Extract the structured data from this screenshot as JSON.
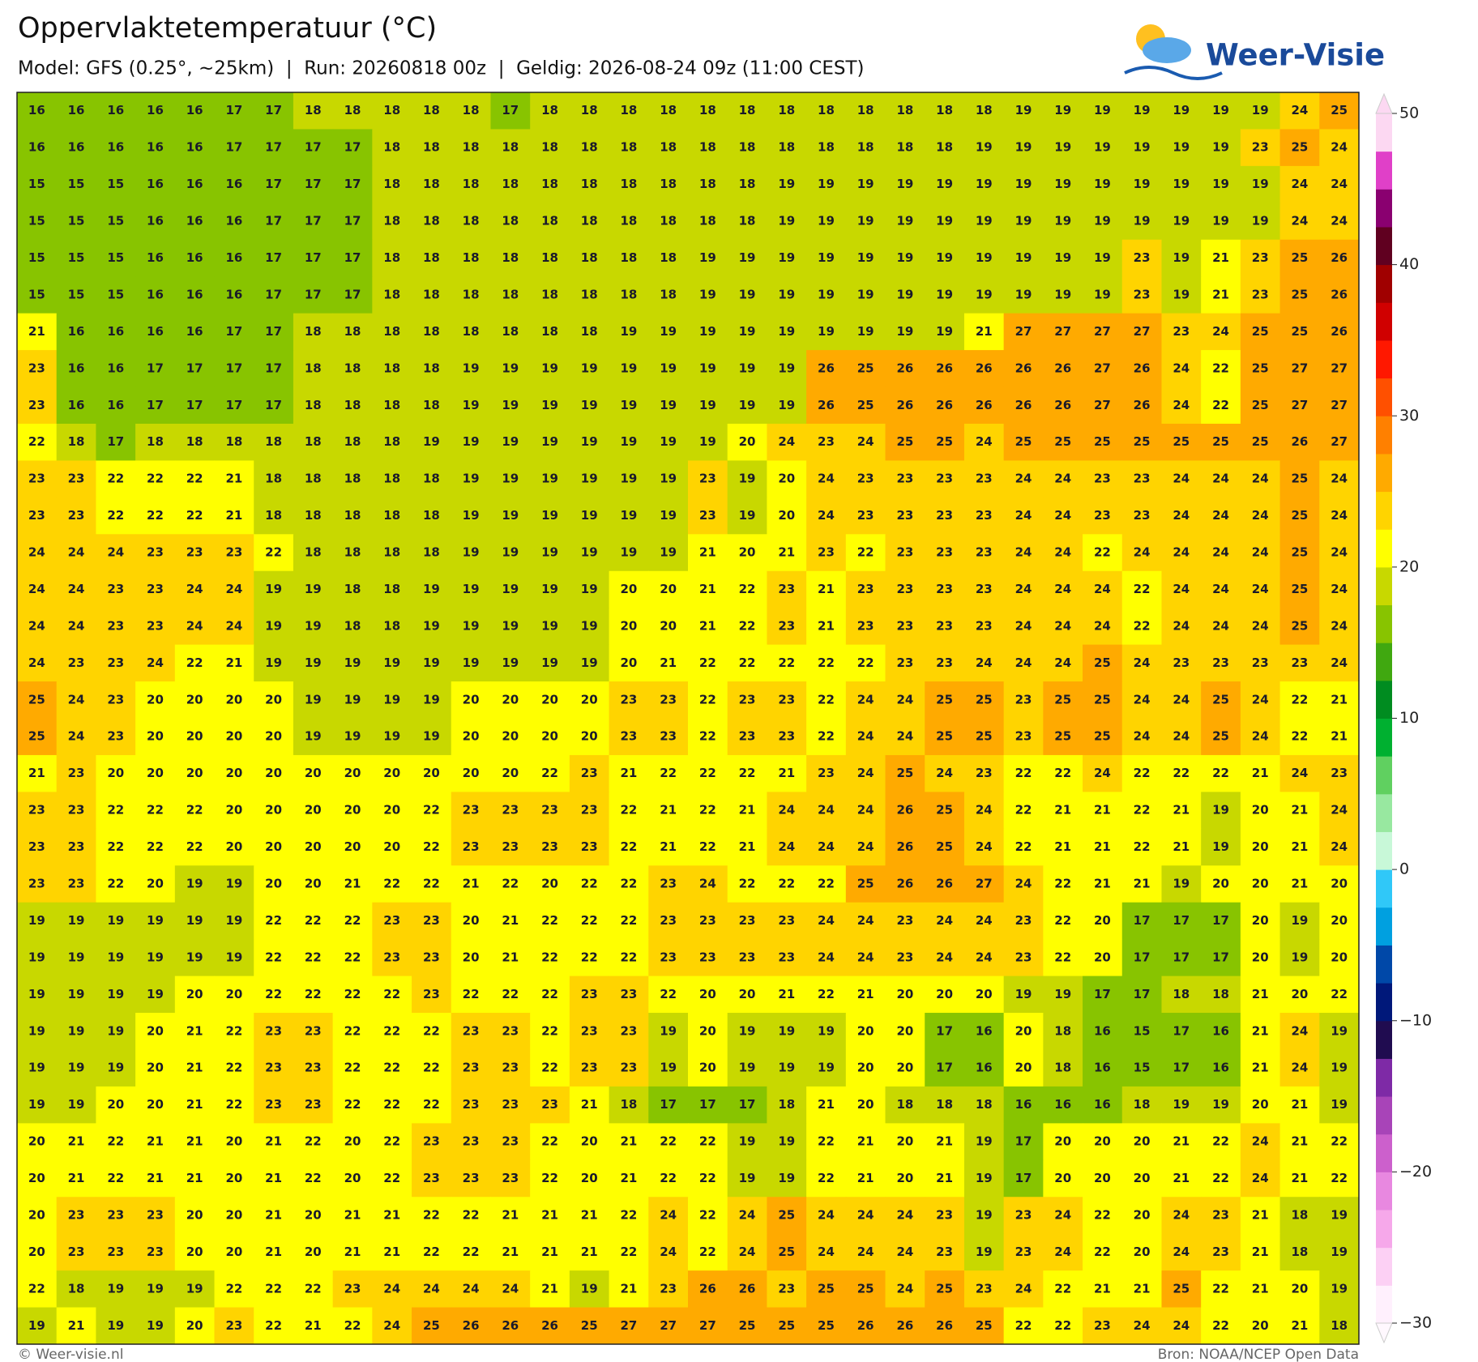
{
  "header": {
    "title": "Oppervlaktetemperatuur (°C)",
    "subtitle": "Model: GFS (0.25°, ~25km)  |  Run: 20260818 00z  |  Geldig: 2026-08-24 09z (11:00 CEST)"
  },
  "logo": {
    "text": "Weer-Visie"
  },
  "map": {
    "values": [
      [
        16,
        16,
        16,
        16,
        16,
        17,
        17,
        18,
        18,
        18,
        18,
        18,
        17,
        18,
        18,
        18,
        18,
        18,
        18,
        18,
        18,
        18,
        18,
        18,
        18,
        19,
        19,
        19,
        19,
        19,
        19,
        19,
        24,
        25
      ],
      [
        16,
        16,
        16,
        16,
        16,
        17,
        17,
        17,
        17,
        18,
        18,
        18,
        18,
        18,
        18,
        18,
        18,
        18,
        18,
        18,
        18,
        18,
        18,
        18,
        19,
        19,
        19,
        19,
        19,
        19,
        19,
        23,
        25,
        24
      ],
      [
        15,
        15,
        15,
        16,
        16,
        16,
        17,
        17,
        17,
        18,
        18,
        18,
        18,
        18,
        18,
        18,
        18,
        18,
        18,
        19,
        19,
        19,
        19,
        19,
        19,
        19,
        19,
        19,
        19,
        19,
        19,
        19,
        24,
        24
      ],
      [
        15,
        15,
        15,
        16,
        16,
        16,
        17,
        17,
        17,
        18,
        18,
        18,
        18,
        18,
        18,
        18,
        18,
        18,
        18,
        19,
        19,
        19,
        19,
        19,
        19,
        19,
        19,
        19,
        19,
        19,
        19,
        19,
        24,
        24
      ],
      [
        15,
        15,
        15,
        16,
        16,
        16,
        17,
        17,
        17,
        18,
        18,
        18,
        18,
        18,
        18,
        18,
        18,
        19,
        19,
        19,
        19,
        19,
        19,
        19,
        19,
        19,
        19,
        19,
        23,
        19,
        21,
        23,
        25,
        26
      ],
      [
        15,
        15,
        15,
        16,
        16,
        16,
        17,
        17,
        17,
        18,
        18,
        18,
        18,
        18,
        18,
        18,
        18,
        19,
        19,
        19,
        19,
        19,
        19,
        19,
        19,
        19,
        19,
        19,
        23,
        19,
        21,
        23,
        25,
        26
      ],
      [
        21,
        16,
        16,
        16,
        16,
        17,
        17,
        18,
        18,
        18,
        18,
        18,
        18,
        18,
        18,
        19,
        19,
        19,
        19,
        19,
        19,
        19,
        19,
        19,
        21,
        27,
        27,
        27,
        27,
        23,
        24,
        25,
        25,
        26
      ],
      [
        23,
        16,
        16,
        17,
        17,
        17,
        17,
        18,
        18,
        18,
        18,
        19,
        19,
        19,
        19,
        19,
        19,
        19,
        19,
        19,
        26,
        25,
        26,
        26,
        26,
        26,
        26,
        27,
        26,
        24,
        22,
        25,
        27,
        27
      ],
      [
        23,
        16,
        16,
        17,
        17,
        17,
        17,
        18,
        18,
        18,
        18,
        19,
        19,
        19,
        19,
        19,
        19,
        19,
        19,
        19,
        26,
        25,
        26,
        26,
        26,
        26,
        26,
        27,
        26,
        24,
        22,
        25,
        27,
        27
      ],
      [
        22,
        18,
        17,
        18,
        18,
        18,
        18,
        18,
        18,
        18,
        19,
        19,
        19,
        19,
        19,
        19,
        19,
        19,
        20,
        24,
        23,
        24,
        25,
        25,
        24,
        25,
        25,
        25,
        25,
        25,
        25,
        25,
        26,
        27
      ],
      [
        23,
        23,
        22,
        22,
        22,
        21,
        18,
        18,
        18,
        18,
        18,
        19,
        19,
        19,
        19,
        19,
        19,
        23,
        19,
        20,
        24,
        23,
        23,
        23,
        23,
        24,
        24,
        23,
        23,
        24,
        24,
        24,
        25,
        24
      ],
      [
        23,
        23,
        22,
        22,
        22,
        21,
        18,
        18,
        18,
        18,
        18,
        19,
        19,
        19,
        19,
        19,
        19,
        23,
        19,
        20,
        24,
        23,
        23,
        23,
        23,
        24,
        24,
        23,
        23,
        24,
        24,
        24,
        25,
        24
      ],
      [
        24,
        24,
        24,
        23,
        23,
        23,
        22,
        18,
        18,
        18,
        18,
        19,
        19,
        19,
        19,
        19,
        19,
        21,
        20,
        21,
        23,
        22,
        23,
        23,
        23,
        24,
        24,
        22,
        24,
        24,
        24,
        24,
        25,
        24
      ],
      [
        24,
        24,
        23,
        23,
        24,
        24,
        19,
        19,
        18,
        18,
        19,
        19,
        19,
        19,
        19,
        20,
        20,
        21,
        22,
        23,
        21,
        23,
        23,
        23,
        23,
        24,
        24,
        24,
        22,
        24,
        24,
        24,
        25,
        24
      ],
      [
        24,
        24,
        23,
        23,
        24,
        24,
        19,
        19,
        18,
        18,
        19,
        19,
        19,
        19,
        19,
        20,
        20,
        21,
        22,
        23,
        21,
        23,
        23,
        23,
        23,
        24,
        24,
        24,
        22,
        24,
        24,
        24,
        25,
        24
      ],
      [
        24,
        23,
        23,
        24,
        22,
        21,
        19,
        19,
        19,
        19,
        19,
        19,
        19,
        19,
        19,
        20,
        21,
        22,
        22,
        22,
        22,
        22,
        23,
        23,
        24,
        24,
        24,
        25,
        24,
        23,
        23,
        23,
        23,
        24
      ],
      [
        25,
        24,
        23,
        20,
        20,
        20,
        20,
        19,
        19,
        19,
        19,
        20,
        20,
        20,
        20,
        23,
        23,
        22,
        23,
        23,
        22,
        24,
        24,
        25,
        25,
        23,
        25,
        25,
        24,
        24,
        25,
        24,
        22,
        21
      ],
      [
        25,
        24,
        23,
        20,
        20,
        20,
        20,
        19,
        19,
        19,
        19,
        20,
        20,
        20,
        20,
        23,
        23,
        22,
        23,
        23,
        22,
        24,
        24,
        25,
        25,
        23,
        25,
        25,
        24,
        24,
        25,
        24,
        22,
        21
      ],
      [
        21,
        23,
        20,
        20,
        20,
        20,
        20,
        20,
        20,
        20,
        20,
        20,
        20,
        22,
        23,
        21,
        22,
        22,
        22,
        21,
        23,
        24,
        25,
        24,
        23,
        22,
        22,
        24,
        22,
        22,
        22,
        21,
        24,
        23
      ],
      [
        23,
        23,
        22,
        22,
        22,
        20,
        20,
        20,
        20,
        20,
        22,
        23,
        23,
        23,
        23,
        22,
        21,
        22,
        21,
        24,
        24,
        24,
        26,
        25,
        24,
        22,
        21,
        21,
        22,
        21,
        19,
        20,
        21,
        24
      ],
      [
        23,
        23,
        22,
        22,
        22,
        20,
        20,
        20,
        20,
        20,
        22,
        23,
        23,
        23,
        23,
        22,
        21,
        22,
        21,
        24,
        24,
        24,
        26,
        25,
        24,
        22,
        21,
        21,
        22,
        21,
        19,
        20,
        21,
        24
      ],
      [
        23,
        23,
        22,
        20,
        19,
        19,
        20,
        20,
        21,
        22,
        22,
        21,
        22,
        20,
        22,
        22,
        23,
        24,
        22,
        22,
        22,
        25,
        26,
        26,
        27,
        24,
        22,
        21,
        21,
        19,
        20,
        20,
        21,
        20
      ],
      [
        19,
        19,
        19,
        19,
        19,
        19,
        22,
        22,
        22,
        23,
        23,
        20,
        21,
        22,
        22,
        22,
        23,
        23,
        23,
        23,
        24,
        24,
        23,
        24,
        24,
        23,
        22,
        20,
        17,
        17,
        17,
        20,
        19,
        20
      ],
      [
        19,
        19,
        19,
        19,
        19,
        19,
        22,
        22,
        22,
        23,
        23,
        20,
        21,
        22,
        22,
        22,
        23,
        23,
        23,
        23,
        24,
        24,
        23,
        24,
        24,
        23,
        22,
        20,
        17,
        17,
        17,
        20,
        19,
        20
      ],
      [
        19,
        19,
        19,
        19,
        20,
        20,
        22,
        22,
        22,
        22,
        23,
        22,
        22,
        22,
        23,
        23,
        22,
        20,
        20,
        21,
        22,
        21,
        20,
        20,
        20,
        19,
        19,
        17,
        17,
        18,
        18,
        21,
        20,
        22
      ],
      [
        19,
        19,
        19,
        20,
        21,
        22,
        23,
        23,
        22,
        22,
        22,
        23,
        23,
        22,
        23,
        23,
        19,
        20,
        19,
        19,
        19,
        20,
        20,
        17,
        16,
        20,
        18,
        16,
        15,
        17,
        16,
        21,
        24,
        19
      ],
      [
        19,
        19,
        19,
        20,
        21,
        22,
        23,
        23,
        22,
        22,
        22,
        23,
        23,
        22,
        23,
        23,
        19,
        20,
        19,
        19,
        19,
        20,
        20,
        17,
        16,
        20,
        18,
        16,
        15,
        17,
        16,
        21,
        24,
        19
      ],
      [
        19,
        19,
        20,
        20,
        21,
        22,
        23,
        23,
        22,
        22,
        22,
        23,
        23,
        23,
        21,
        18,
        17,
        17,
        17,
        18,
        21,
        20,
        18,
        18,
        18,
        16,
        16,
        16,
        18,
        19,
        19,
        20,
        21,
        19
      ],
      [
        20,
        21,
        22,
        21,
        21,
        20,
        21,
        22,
        20,
        22,
        23,
        23,
        23,
        22,
        20,
        21,
        22,
        22,
        19,
        19,
        22,
        21,
        20,
        21,
        19,
        17,
        20,
        20,
        20,
        21,
        22,
        24,
        21,
        22
      ],
      [
        20,
        21,
        22,
        21,
        21,
        20,
        21,
        22,
        20,
        22,
        23,
        23,
        23,
        22,
        20,
        21,
        22,
        22,
        19,
        19,
        22,
        21,
        20,
        21,
        19,
        17,
        20,
        20,
        20,
        21,
        22,
        24,
        21,
        22
      ],
      [
        20,
        23,
        23,
        23,
        20,
        20,
        21,
        20,
        21,
        21,
        22,
        22,
        21,
        21,
        21,
        22,
        24,
        22,
        24,
        25,
        24,
        24,
        24,
        23,
        19,
        23,
        24,
        22,
        20,
        24,
        23,
        21,
        18,
        19
      ],
      [
        20,
        23,
        23,
        23,
        20,
        20,
        21,
        20,
        21,
        21,
        22,
        22,
        21,
        21,
        21,
        22,
        24,
        22,
        24,
        25,
        24,
        24,
        24,
        23,
        19,
        23,
        24,
        22,
        20,
        24,
        23,
        21,
        18,
        19
      ],
      [
        22,
        18,
        19,
        19,
        19,
        22,
        22,
        22,
        23,
        24,
        24,
        24,
        24,
        21,
        19,
        21,
        23,
        26,
        26,
        23,
        25,
        25,
        24,
        25,
        23,
        24,
        22,
        21,
        21,
        25,
        22,
        21,
        20,
        19
      ],
      [
        19,
        21,
        19,
        19,
        20,
        23,
        22,
        21,
        22,
        24,
        25,
        26,
        26,
        26,
        25,
        27,
        27,
        27,
        25,
        25,
        25,
        26,
        26,
        26,
        25,
        22,
        22,
        23,
        24,
        24,
        22,
        20,
        21,
        18
      ]
    ]
  },
  "colorbar": {
    "min": -30,
    "max": 50,
    "ticks": [
      50,
      40,
      30,
      20,
      10,
      0,
      {
        "value": -10,
        "label": "−10"
      },
      {
        "value": -20,
        "label": "−20"
      },
      {
        "value": -30,
        "label": "−30"
      }
    ],
    "colors": [
      "#fff0fd",
      "#fcd0f4",
      "#f6a8ea",
      "#e888e0",
      "#cc60cc",
      "#a844b8",
      "#7e2aa6",
      "#200c50",
      "#00187a",
      "#0048a8",
      "#00a0e0",
      "#30c8f8",
      "#c8f8d8",
      "#98e8a0",
      "#60d060",
      "#00b030",
      "#008c20",
      "#40a810",
      "#88c400",
      "#c8d800",
      "#ffff00",
      "#ffd400",
      "#ffaa00",
      "#ff8000",
      "#ff5000",
      "#ff1800",
      "#d00000",
      "#a00000",
      "#600020",
      "#8a0070",
      "#e040c8",
      "#fcd8f2"
    ]
  },
  "footer": {
    "left": "© Weer-visie.nl",
    "right": "Bron: NOAA/NCEP Open Data"
  }
}
